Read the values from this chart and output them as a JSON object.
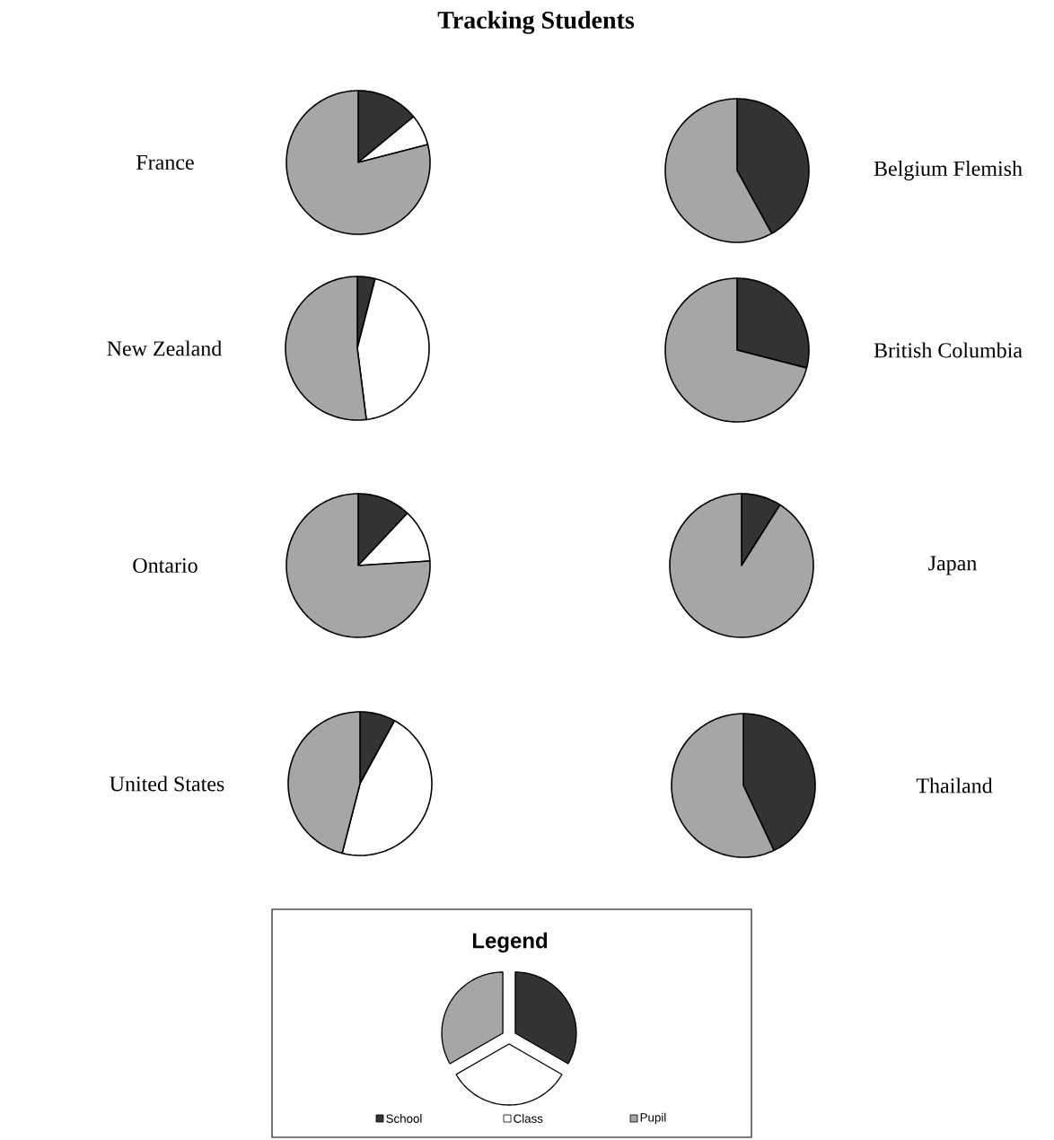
{
  "chart_data": [
    {
      "type": "other",
      "title": "Tracking Students"
    },
    {
      "type": "pie",
      "title": "France",
      "categories": [
        "School",
        "Class",
        "Pupil"
      ],
      "values": [
        14,
        7,
        79
      ],
      "colors": [
        "#333333",
        "#ffffff",
        "#a6a6a6"
      ],
      "legend": "bottom",
      "legend_title": "Legend"
    },
    {
      "type": "pie",
      "title": "Belgium Flemish",
      "categories": [
        null,
        null,
        null
      ],
      "values": [
        42,
        0,
        58
      ],
      "colors": [
        "#333333",
        "#ffffff",
        "#a6a6a6"
      ]
    },
    {
      "type": "pie",
      "title": "New Zealand",
      "categories": [
        null,
        null,
        null
      ],
      "values": [
        4,
        44,
        52
      ],
      "colors": [
        "#333333",
        "#ffffff",
        "#a6a6a6"
      ]
    },
    {
      "type": "pie",
      "title": "British Columbia",
      "categories": [
        null,
        null,
        null
      ],
      "values": [
        29,
        0,
        71
      ],
      "colors": [
        "#333333",
        "#ffffff",
        "#a6a6a6"
      ]
    },
    {
      "type": "pie",
      "title": "Ontario",
      "categories": [
        null,
        null,
        null
      ],
      "values": [
        12,
        12,
        76
      ],
      "colors": [
        "#333333",
        "#ffffff",
        "#a6a6a6"
      ]
    },
    {
      "type": "pie",
      "title": "Japan",
      "categories": [
        null,
        null,
        null
      ],
      "values": [
        9,
        0,
        91
      ],
      "colors": [
        "#333333",
        "#ffffff",
        "#a6a6a6"
      ]
    },
    {
      "type": "pie",
      "title": "United States",
      "categories": [
        null,
        null,
        null
      ],
      "values": [
        8,
        46,
        46
      ],
      "colors": [
        "#333333",
        "#ffffff",
        "#a6a6a6"
      ]
    },
    {
      "type": "pie",
      "title": "Thailand",
      "categories": [
        null,
        null,
        null
      ],
      "values": [
        43,
        0,
        57
      ],
      "colors": [
        "#333333",
        "#ffffff",
        "#a6a6a6"
      ]
    }
  ]
}
